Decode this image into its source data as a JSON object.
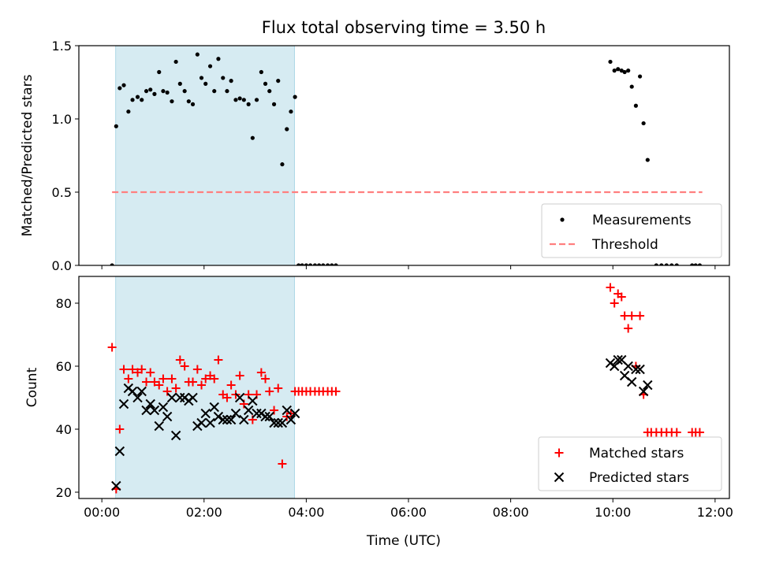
{
  "chart_data": {
    "title": "Flux total observing time = 3.50 h",
    "xlabel": "Time (UTC)",
    "x_unit": "hours UTC",
    "xlim": [
      -0.45,
      12.28
    ],
    "xticks": [
      {
        "v": 0,
        "label": "00:00"
      },
      {
        "v": 2,
        "label": "02:00"
      },
      {
        "v": 4,
        "label": "04:00"
      },
      {
        "v": 6,
        "label": "06:00"
      },
      {
        "v": 8,
        "label": "08:00"
      },
      {
        "v": 10,
        "label": "10:00"
      },
      {
        "v": 12,
        "label": "12:00"
      }
    ],
    "observing_window": {
      "start": 0.27,
      "end": 3.77,
      "color": "#add8e6"
    },
    "panels": [
      {
        "type": "scatter",
        "ylabel": "Matched/Predicted stars",
        "ylim": [
          0,
          1.5
        ],
        "yticks": [
          {
            "v": 0,
            "label": "0.0"
          },
          {
            "v": 0.5,
            "label": "0.5"
          },
          {
            "v": 1.0,
            "label": "1.0"
          },
          {
            "v": 1.5,
            "label": "1.5"
          }
        ],
        "threshold": {
          "name": "Threshold",
          "value": 0.5,
          "x": [
            0.2,
            11.75
          ],
          "color": "#ff7f7f"
        },
        "series": [
          {
            "name": "Measurements",
            "marker": "dot",
            "color": "#000000",
            "points": [
              [
                0.2,
                0.0
              ],
              [
                0.28,
                0.95
              ],
              [
                0.35,
                1.21
              ],
              [
                0.43,
                1.23
              ],
              [
                0.52,
                1.05
              ],
              [
                0.6,
                1.13
              ],
              [
                0.7,
                1.15
              ],
              [
                0.78,
                1.13
              ],
              [
                0.87,
                1.19
              ],
              [
                0.95,
                1.2
              ],
              [
                1.03,
                1.17
              ],
              [
                1.12,
                1.32
              ],
              [
                1.2,
                1.19
              ],
              [
                1.28,
                1.18
              ],
              [
                1.37,
                1.12
              ],
              [
                1.45,
                1.39
              ],
              [
                1.53,
                1.24
              ],
              [
                1.62,
                1.19
              ],
              [
                1.7,
                1.12
              ],
              [
                1.78,
                1.1
              ],
              [
                1.87,
                1.44
              ],
              [
                1.95,
                1.28
              ],
              [
                2.03,
                1.24
              ],
              [
                2.12,
                1.36
              ],
              [
                2.2,
                1.19
              ],
              [
                2.28,
                1.41
              ],
              [
                2.37,
                1.28
              ],
              [
                2.45,
                1.19
              ],
              [
                2.53,
                1.26
              ],
              [
                2.62,
                1.13
              ],
              [
                2.7,
                1.14
              ],
              [
                2.78,
                1.13
              ],
              [
                2.87,
                1.1
              ],
              [
                2.95,
                0.87
              ],
              [
                3.03,
                1.13
              ],
              [
                3.12,
                1.32
              ],
              [
                3.2,
                1.24
              ],
              [
                3.28,
                1.19
              ],
              [
                3.37,
                1.1
              ],
              [
                3.45,
                1.26
              ],
              [
                3.53,
                0.69
              ],
              [
                3.62,
                0.93
              ],
              [
                3.7,
                1.05
              ],
              [
                3.78,
                1.15
              ],
              [
                3.85,
                0.0
              ],
              [
                3.92,
                0.0
              ],
              [
                4.0,
                0.0
              ],
              [
                4.08,
                0.0
              ],
              [
                4.17,
                0.0
              ],
              [
                4.25,
                0.0
              ],
              [
                4.33,
                0.0
              ],
              [
                4.42,
                0.0
              ],
              [
                4.5,
                0.0
              ],
              [
                4.58,
                0.0
              ],
              [
                9.95,
                1.39
              ],
              [
                10.03,
                1.33
              ],
              [
                10.1,
                1.34
              ],
              [
                10.17,
                1.33
              ],
              [
                10.23,
                1.32
              ],
              [
                10.3,
                1.33
              ],
              [
                10.37,
                1.22
              ],
              [
                10.45,
                1.09
              ],
              [
                10.53,
                1.29
              ],
              [
                10.6,
                0.97
              ],
              [
                10.68,
                0.72
              ],
              [
                10.85,
                0.0
              ],
              [
                10.95,
                0.0
              ],
              [
                11.05,
                0.0
              ],
              [
                11.15,
                0.0
              ],
              [
                11.25,
                0.0
              ],
              [
                11.55,
                0.0
              ],
              [
                11.62,
                0.0
              ],
              [
                11.7,
                0.0
              ]
            ]
          }
        ],
        "legend": {
          "position": "lower-right",
          "entries": [
            "Measurements",
            "Threshold"
          ]
        }
      },
      {
        "type": "scatter",
        "ylabel": "Count",
        "ylim": [
          18,
          88.5
        ],
        "yticks": [
          {
            "v": 20,
            "label": "20"
          },
          {
            "v": 40,
            "label": "40"
          },
          {
            "v": 60,
            "label": "60"
          },
          {
            "v": 80,
            "label": "80"
          }
        ],
        "series": [
          {
            "name": "Matched stars",
            "marker": "plus",
            "color": "#ff0000",
            "points": [
              [
                0.2,
                66
              ],
              [
                0.28,
                21
              ],
              [
                0.35,
                40
              ],
              [
                0.43,
                59
              ],
              [
                0.52,
                56
              ],
              [
                0.6,
                59
              ],
              [
                0.7,
                58
              ],
              [
                0.78,
                59
              ],
              [
                0.87,
                55
              ],
              [
                0.95,
                58
              ],
              [
                1.03,
                55
              ],
              [
                1.12,
                54
              ],
              [
                1.2,
                56
              ],
              [
                1.28,
                52
              ],
              [
                1.37,
                56
              ],
              [
                1.45,
                53
              ],
              [
                1.53,
                62
              ],
              [
                1.62,
                60
              ],
              [
                1.7,
                55
              ],
              [
                1.78,
                55
              ],
              [
                1.87,
                59
              ],
              [
                1.95,
                54
              ],
              [
                2.03,
                56
              ],
              [
                2.12,
                57
              ],
              [
                2.2,
                56
              ],
              [
                2.28,
                62
              ],
              [
                2.37,
                51
              ],
              [
                2.45,
                50
              ],
              [
                2.53,
                54
              ],
              [
                2.62,
                51
              ],
              [
                2.7,
                57
              ],
              [
                2.78,
                48
              ],
              [
                2.87,
                51
              ],
              [
                2.95,
                43
              ],
              [
                3.03,
                51
              ],
              [
                3.12,
                58
              ],
              [
                3.2,
                56
              ],
              [
                3.28,
                52
              ],
              [
                3.37,
                46
              ],
              [
                3.45,
                53
              ],
              [
                3.53,
                29
              ],
              [
                3.62,
                44
              ],
              [
                3.7,
                45
              ],
              [
                3.78,
                52
              ],
              [
                3.85,
                52
              ],
              [
                3.92,
                52
              ],
              [
                4.0,
                52
              ],
              [
                4.08,
                52
              ],
              [
                4.17,
                52
              ],
              [
                4.25,
                52
              ],
              [
                4.33,
                52
              ],
              [
                4.42,
                52
              ],
              [
                4.5,
                52
              ],
              [
                4.58,
                52
              ],
              [
                9.95,
                85
              ],
              [
                10.03,
                80
              ],
              [
                10.1,
                83
              ],
              [
                10.17,
                82
              ],
              [
                10.23,
                76
              ],
              [
                10.3,
                72
              ],
              [
                10.37,
                76
              ],
              [
                10.45,
                60
              ],
              [
                10.53,
                76
              ],
              [
                10.6,
                51
              ],
              [
                10.68,
                39
              ],
              [
                10.75,
                39
              ],
              [
                10.85,
                39
              ],
              [
                10.95,
                39
              ],
              [
                11.05,
                39
              ],
              [
                11.15,
                39
              ],
              [
                11.25,
                39
              ],
              [
                11.55,
                39
              ],
              [
                11.62,
                39
              ],
              [
                11.7,
                39
              ]
            ]
          },
          {
            "name": "Predicted stars",
            "marker": "x",
            "color": "#000000",
            "points": [
              [
                0.28,
                22
              ],
              [
                0.35,
                33
              ],
              [
                0.43,
                48
              ],
              [
                0.52,
                53
              ],
              [
                0.6,
                52
              ],
              [
                0.7,
                50
              ],
              [
                0.78,
                52
              ],
              [
                0.87,
                46
              ],
              [
                0.95,
                48
              ],
              [
                1.03,
                46
              ],
              [
                1.12,
                41
              ],
              [
                1.2,
                47
              ],
              [
                1.28,
                44
              ],
              [
                1.37,
                50
              ],
              [
                1.45,
                38
              ],
              [
                1.53,
                50
              ],
              [
                1.62,
                50
              ],
              [
                1.7,
                49
              ],
              [
                1.78,
                50
              ],
              [
                1.87,
                41
              ],
              [
                1.95,
                42
              ],
              [
                2.03,
                45
              ],
              [
                2.12,
                42
              ],
              [
                2.2,
                47
              ],
              [
                2.28,
                44
              ],
              [
                2.37,
                43
              ],
              [
                2.45,
                43
              ],
              [
                2.53,
                43
              ],
              [
                2.62,
                45
              ],
              [
                2.7,
                50
              ],
              [
                2.78,
                43
              ],
              [
                2.87,
                46
              ],
              [
                2.95,
                49
              ],
              [
                3.03,
                45
              ],
              [
                3.12,
                45
              ],
              [
                3.2,
                44
              ],
              [
                3.28,
                44
              ],
              [
                3.37,
                42
              ],
              [
                3.45,
                42
              ],
              [
                3.53,
                42
              ],
              [
                3.62,
                46
              ],
              [
                3.7,
                43
              ],
              [
                3.78,
                45
              ],
              [
                9.95,
                61
              ],
              [
                10.03,
                60
              ],
              [
                10.1,
                62
              ],
              [
                10.17,
                62
              ],
              [
                10.23,
                57
              ],
              [
                10.3,
                60
              ],
              [
                10.37,
                55
              ],
              [
                10.45,
                59
              ],
              [
                10.53,
                59
              ],
              [
                10.6,
                52
              ],
              [
                10.68,
                54
              ]
            ]
          }
        ],
        "legend": {
          "position": "lower-right",
          "entries": [
            "Matched stars",
            "Predicted stars"
          ]
        }
      }
    ]
  }
}
